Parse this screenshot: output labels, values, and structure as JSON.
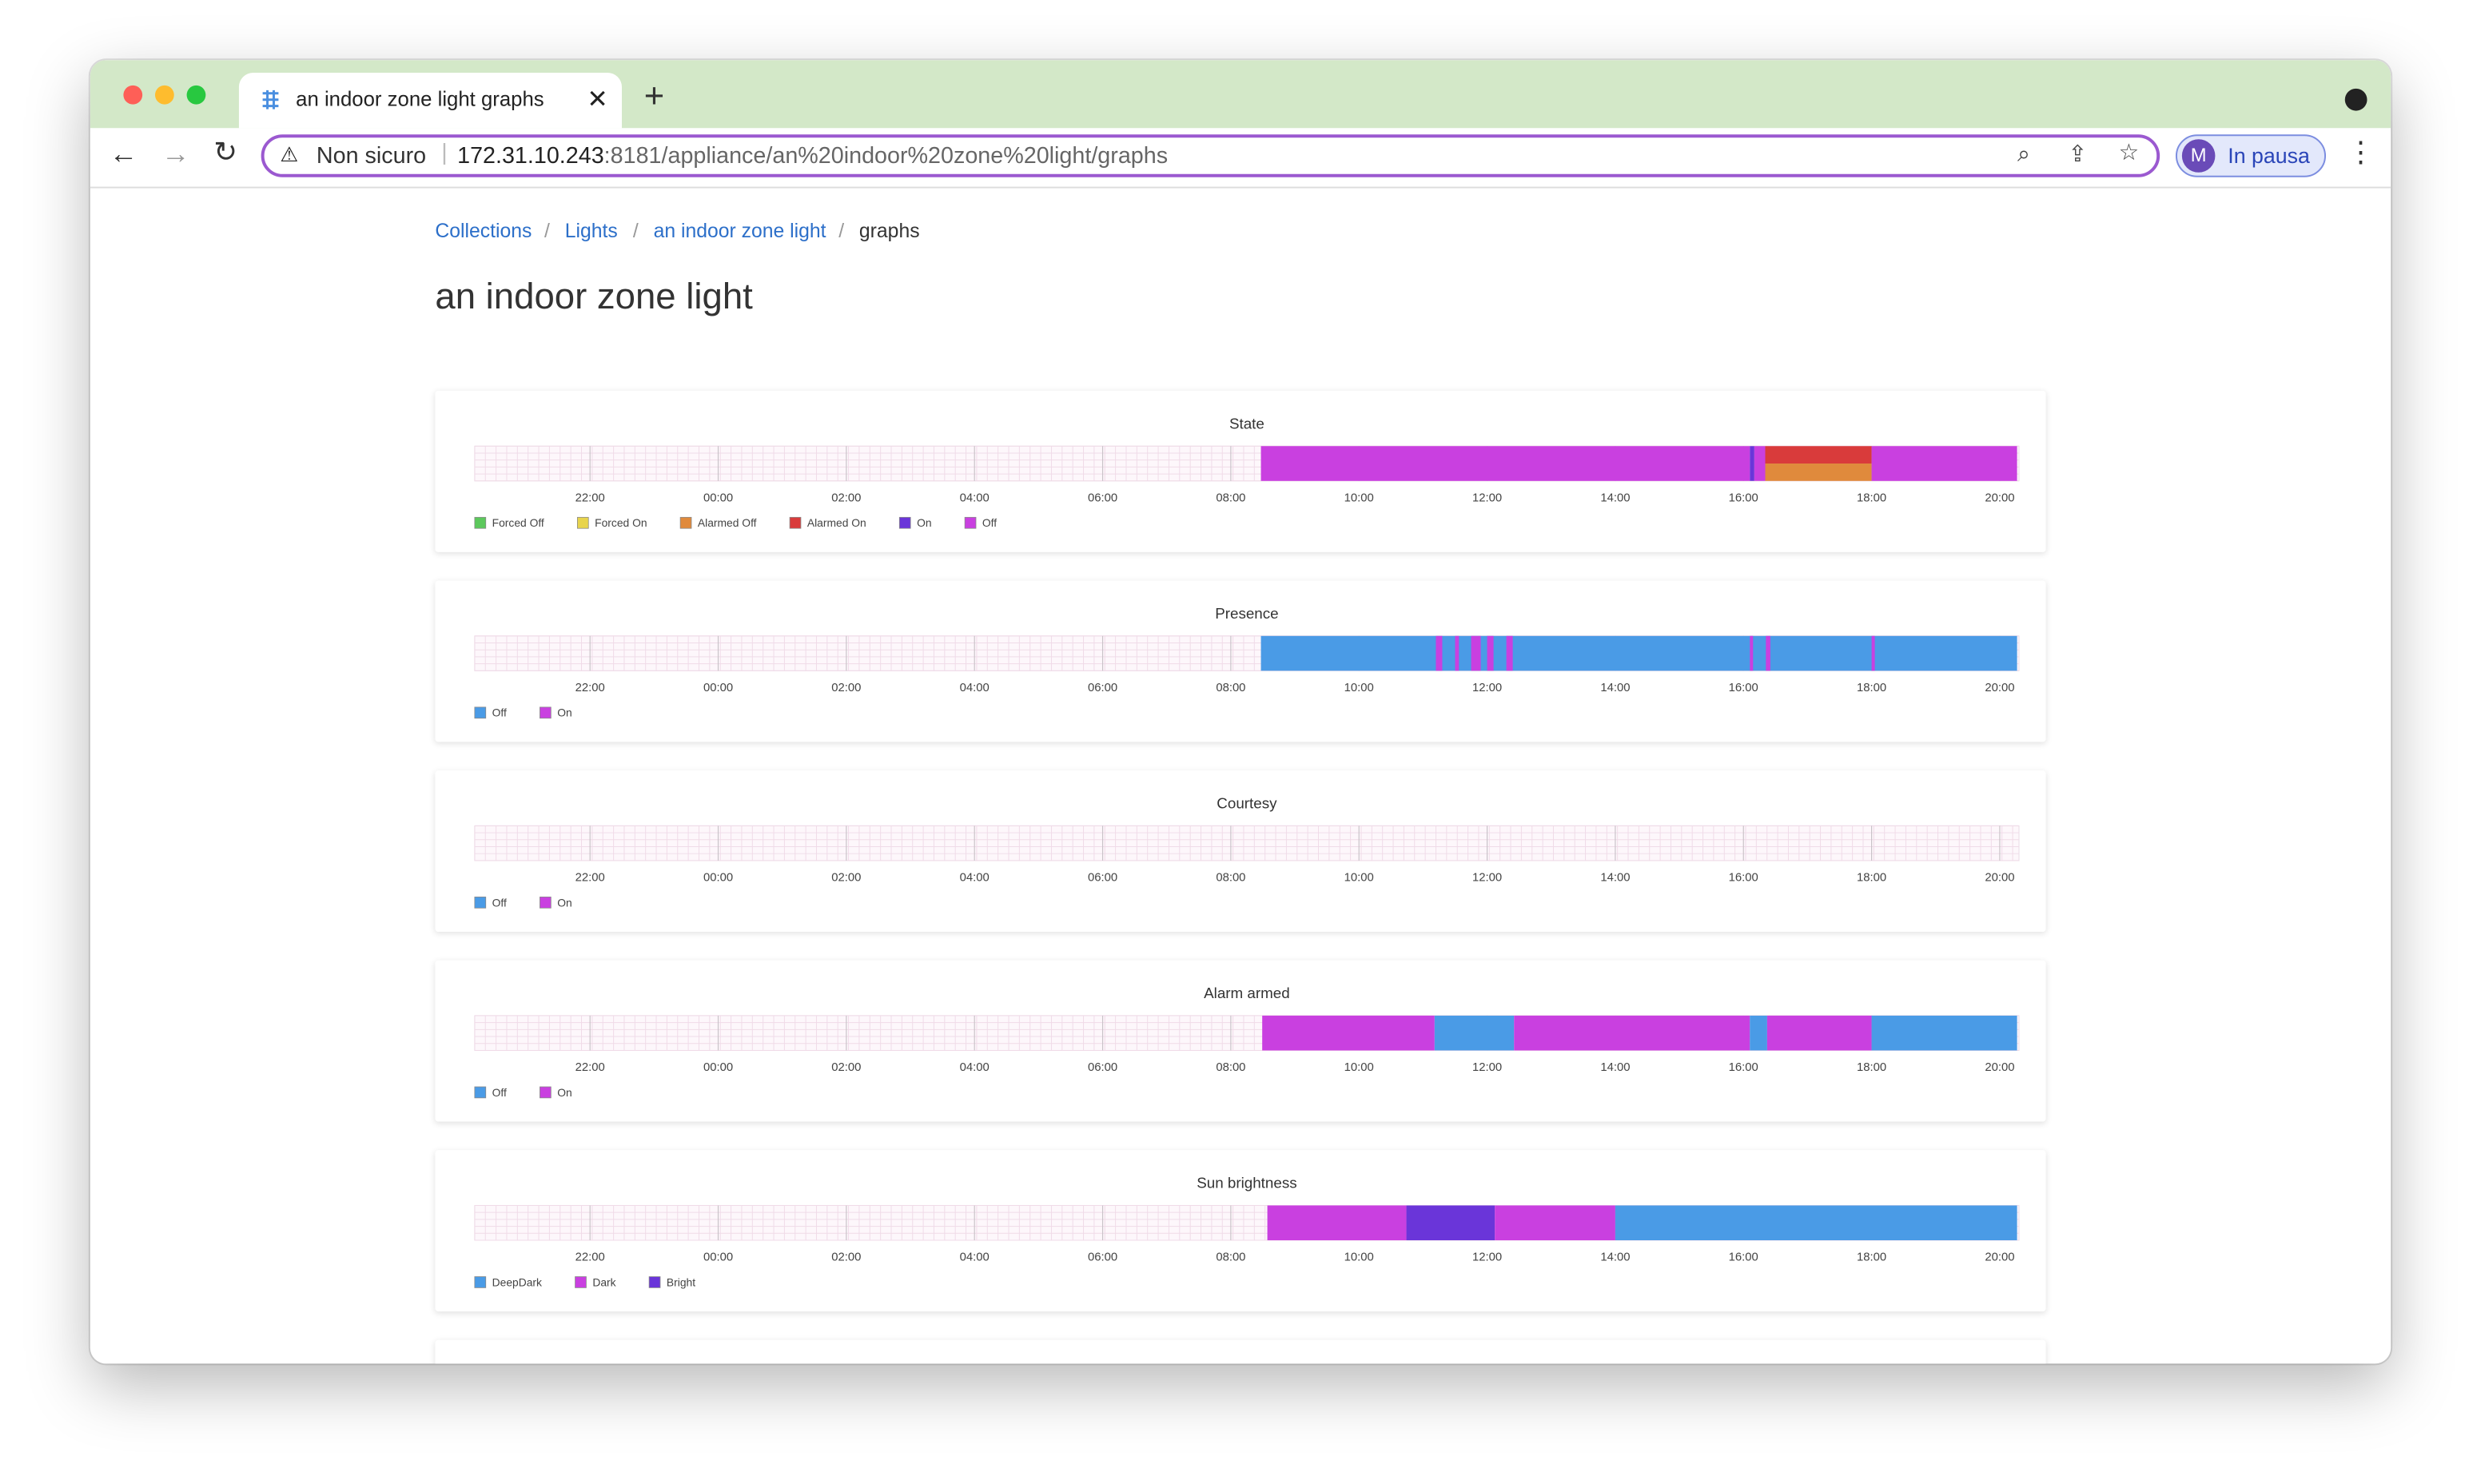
{
  "browser": {
    "tab_title": "an indoor zone light graphs",
    "security": "Non sicuro",
    "url_host": "172.31.10.243",
    "url_path": ":8181/appliance/an%20indoor%20zone%20light/graphs",
    "profile_initial": "M",
    "profile_status": "In pausa"
  },
  "breadcrumbs": [
    "Collections",
    "Lights",
    "an indoor zone light",
    "graphs"
  ],
  "heading": "an indoor zone light",
  "chart_data": [
    {
      "type": "timeline",
      "title": "State",
      "xlim": [
        20.2,
        44.3
      ],
      "xticks": [
        {
          "value": 22,
          "label": "22:00"
        },
        {
          "value": 24,
          "label": "00:00"
        },
        {
          "value": 26,
          "label": "02:00"
        },
        {
          "value": 28,
          "label": "04:00"
        },
        {
          "value": 30,
          "label": "06:00"
        },
        {
          "value": 32,
          "label": "08:00"
        },
        {
          "value": 34,
          "label": "10:00"
        },
        {
          "value": 36,
          "label": "12:00"
        },
        {
          "value": 38,
          "label": "14:00"
        },
        {
          "value": 40,
          "label": "16:00"
        },
        {
          "value": 42,
          "label": "18:00"
        },
        {
          "value": 44,
          "label": "20:00"
        }
      ],
      "series": [
        {
          "name": "Forced Off",
          "color": "#5cc85c"
        },
        {
          "name": "Forced On",
          "color": "#e8d44d"
        },
        {
          "name": "Alarmed Off",
          "color": "#e08a3c"
        },
        {
          "name": "Alarmed On",
          "color": "#d93b3b"
        },
        {
          "name": "On",
          "color": "#6a35d9"
        },
        {
          "name": "Off",
          "color": "#c940e0"
        }
      ],
      "segments": [
        {
          "state": "Off",
          "start": 32.47,
          "end": 40.1,
          "share": 1
        },
        {
          "state": "On",
          "start": 40.1,
          "end": 40.17,
          "share": 1
        },
        {
          "state": "Off",
          "start": 40.17,
          "end": 40.34,
          "share": 1
        },
        {
          "state": "Alarmed Off",
          "start": 40.34,
          "end": 42.0,
          "share": 0.5
        },
        {
          "state": "Alarmed On",
          "start": 40.34,
          "end": 42.0,
          "share": 0.5
        },
        {
          "state": "Off",
          "start": 42.0,
          "end": 44.27,
          "share": 1
        }
      ]
    },
    {
      "type": "timeline",
      "title": "Presence",
      "xlim": [
        20.2,
        44.3
      ],
      "xticks": [
        {
          "value": 22,
          "label": "22:00"
        },
        {
          "value": 24,
          "label": "00:00"
        },
        {
          "value": 26,
          "label": "02:00"
        },
        {
          "value": 28,
          "label": "04:00"
        },
        {
          "value": 30,
          "label": "06:00"
        },
        {
          "value": 32,
          "label": "08:00"
        },
        {
          "value": 34,
          "label": "10:00"
        },
        {
          "value": 36,
          "label": "12:00"
        },
        {
          "value": 38,
          "label": "14:00"
        },
        {
          "value": 40,
          "label": "16:00"
        },
        {
          "value": 42,
          "label": "18:00"
        },
        {
          "value": 44,
          "label": "20:00"
        }
      ],
      "series": [
        {
          "name": "Off",
          "color": "#4a9be6"
        },
        {
          "name": "On",
          "color": "#c940e0"
        }
      ],
      "segments": [
        {
          "state": "Off",
          "start": 32.47,
          "end": 44.27,
          "share": 1
        },
        {
          "state": "On",
          "start": 35.2,
          "end": 35.3,
          "share": 1
        },
        {
          "state": "On",
          "start": 35.5,
          "end": 35.56,
          "share": 1
        },
        {
          "state": "On",
          "start": 35.75,
          "end": 35.9,
          "share": 1
        },
        {
          "state": "On",
          "start": 36.0,
          "end": 36.1,
          "share": 1
        },
        {
          "state": "On",
          "start": 36.3,
          "end": 36.4,
          "share": 1
        },
        {
          "state": "On",
          "start": 40.1,
          "end": 40.15,
          "share": 1
        },
        {
          "state": "On",
          "start": 40.35,
          "end": 40.42,
          "share": 1
        },
        {
          "state": "On",
          "start": 42.0,
          "end": 42.05,
          "share": 1
        }
      ]
    },
    {
      "type": "timeline",
      "title": "Courtesy",
      "xlim": [
        20.2,
        44.3
      ],
      "xticks": [
        {
          "value": 22,
          "label": "22:00"
        },
        {
          "value": 24,
          "label": "00:00"
        },
        {
          "value": 26,
          "label": "02:00"
        },
        {
          "value": 28,
          "label": "04:00"
        },
        {
          "value": 30,
          "label": "06:00"
        },
        {
          "value": 32,
          "label": "08:00"
        },
        {
          "value": 34,
          "label": "10:00"
        },
        {
          "value": 36,
          "label": "12:00"
        },
        {
          "value": 38,
          "label": "14:00"
        },
        {
          "value": 40,
          "label": "16:00"
        },
        {
          "value": 42,
          "label": "18:00"
        },
        {
          "value": 44,
          "label": "20:00"
        }
      ],
      "series": [
        {
          "name": "Off",
          "color": "#4a9be6"
        },
        {
          "name": "On",
          "color": "#c940e0"
        }
      ],
      "segments": []
    },
    {
      "type": "timeline",
      "title": "Alarm armed",
      "xlim": [
        20.2,
        44.3
      ],
      "xticks": [
        {
          "value": 22,
          "label": "22:00"
        },
        {
          "value": 24,
          "label": "00:00"
        },
        {
          "value": 26,
          "label": "02:00"
        },
        {
          "value": 28,
          "label": "04:00"
        },
        {
          "value": 30,
          "label": "06:00"
        },
        {
          "value": 32,
          "label": "08:00"
        },
        {
          "value": 34,
          "label": "10:00"
        },
        {
          "value": 36,
          "label": "12:00"
        },
        {
          "value": 38,
          "label": "14:00"
        },
        {
          "value": 40,
          "label": "16:00"
        },
        {
          "value": 42,
          "label": "18:00"
        },
        {
          "value": 44,
          "label": "20:00"
        }
      ],
      "series": [
        {
          "name": "Off",
          "color": "#4a9be6"
        },
        {
          "name": "On",
          "color": "#c940e0"
        }
      ],
      "segments": [
        {
          "state": "On",
          "start": 32.49,
          "end": 35.18,
          "share": 1
        },
        {
          "state": "Off",
          "start": 35.18,
          "end": 36.42,
          "share": 1
        },
        {
          "state": "On",
          "start": 36.42,
          "end": 40.1,
          "share": 1
        },
        {
          "state": "Off",
          "start": 40.1,
          "end": 40.37,
          "share": 1
        },
        {
          "state": "On",
          "start": 40.37,
          "end": 42.0,
          "share": 1
        },
        {
          "state": "Off",
          "start": 42.0,
          "end": 44.27,
          "share": 1
        }
      ]
    },
    {
      "type": "timeline",
      "title": "Sun brightness",
      "xlim": [
        20.2,
        44.3
      ],
      "xticks": [
        {
          "value": 22,
          "label": "22:00"
        },
        {
          "value": 24,
          "label": "00:00"
        },
        {
          "value": 26,
          "label": "02:00"
        },
        {
          "value": 28,
          "label": "04:00"
        },
        {
          "value": 30,
          "label": "06:00"
        },
        {
          "value": 32,
          "label": "08:00"
        },
        {
          "value": 34,
          "label": "10:00"
        },
        {
          "value": 36,
          "label": "12:00"
        },
        {
          "value": 38,
          "label": "14:00"
        },
        {
          "value": 40,
          "label": "16:00"
        },
        {
          "value": 42,
          "label": "18:00"
        },
        {
          "value": 44,
          "label": "20:00"
        }
      ],
      "series": [
        {
          "name": "DeepDark",
          "color": "#4a9be6"
        },
        {
          "name": "Dark",
          "color": "#c940e0"
        },
        {
          "name": "Bright",
          "color": "#6a35d9"
        }
      ],
      "segments": [
        {
          "state": "Dark",
          "start": 32.57,
          "end": 34.74,
          "share": 1
        },
        {
          "state": "Bright",
          "start": 34.74,
          "end": 36.12,
          "share": 1
        },
        {
          "state": "Dark",
          "start": 36.12,
          "end": 38.0,
          "share": 1
        },
        {
          "state": "DeepDark",
          "start": 38.0,
          "end": 44.27,
          "share": 1
        }
      ]
    }
  ]
}
